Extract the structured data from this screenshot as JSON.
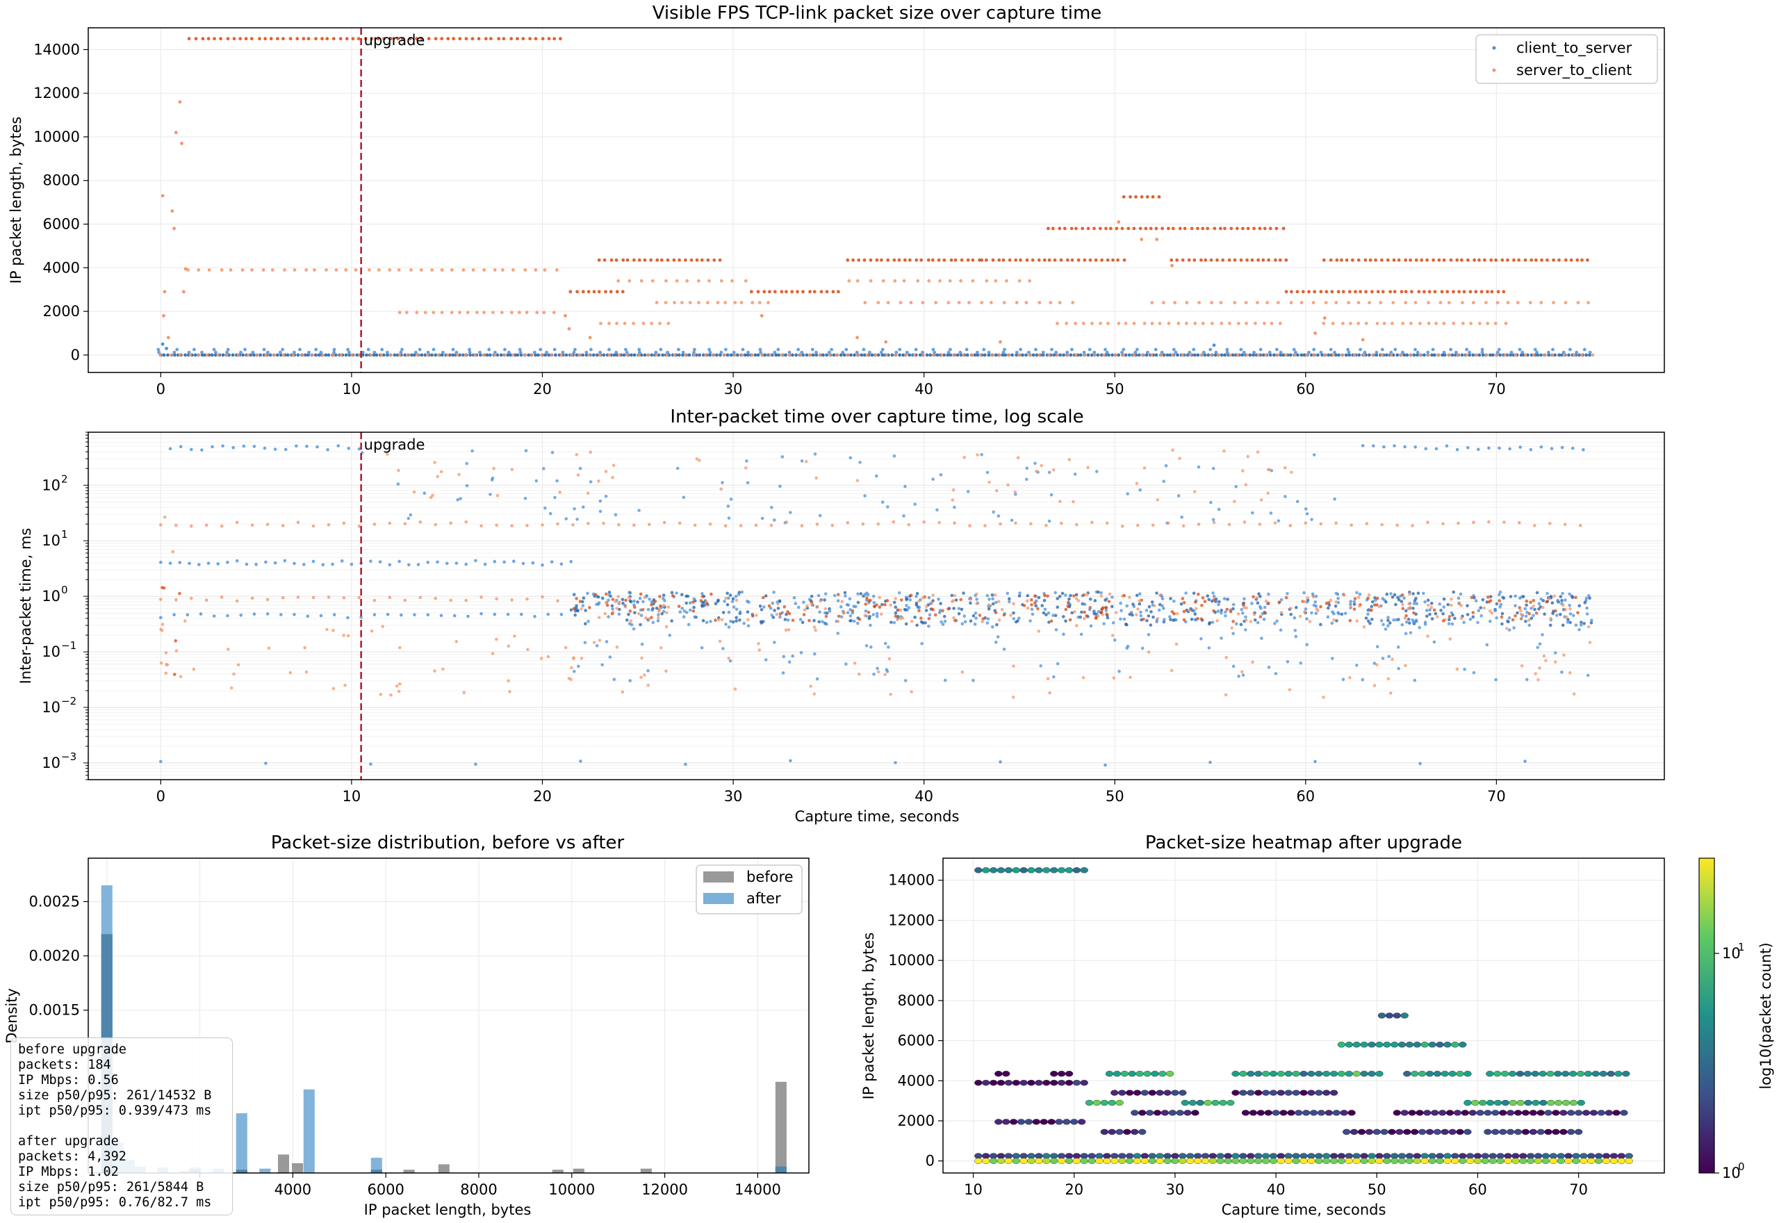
{
  "colors": {
    "client_to_server": "#4a90d9",
    "client_to_server_dense": "#1f5fa8",
    "server_to_client": "#f4956a",
    "server_to_client_dense": "#d9480f",
    "upgrade_line": "#b2182b",
    "before_bar": "#999999",
    "after_bar": "#7bb0d9",
    "overlap_bar": "#4f86ad"
  },
  "upgrade_label": "upgrade",
  "chart_data": [
    {
      "type": "scatter",
      "title": "Visible FPS TCP-link packet size over capture time",
      "xlabel": "",
      "ylabel": "IP packet length, bytes",
      "xlim": [
        -3.8,
        78.8
      ],
      "ylim": [
        -800,
        15000
      ],
      "xticks": [
        0,
        10,
        20,
        30,
        40,
        50,
        60,
        70
      ],
      "yticks": [
        0,
        2000,
        4000,
        6000,
        8000,
        10000,
        12000,
        14000
      ],
      "grid": true,
      "legend": {
        "position": "top-right",
        "entries": [
          "client_to_server",
          "server_to_client"
        ]
      },
      "upgrade_x": 10.5,
      "series": [
        {
          "name": "client_to_server",
          "levels": [
            {
              "y": 0,
              "x_range": [
                0,
                75
              ],
              "spacing": 0.18
            },
            {
              "y": 120,
              "x_range": [
                0,
                75
              ],
              "spacing": 0.7
            },
            {
              "y": 250,
              "x_range": [
                0,
                75
              ],
              "spacing": 0.9
            }
          ],
          "points": [
            [
              0.1,
              500
            ],
            [
              0.3,
              300
            ],
            [
              55.2,
              450
            ]
          ]
        },
        {
          "name": "server_to_client",
          "levels": [
            {
              "y": 14500,
              "x_range": [
                1.5,
                21.2
              ],
              "spacing": 0.33
            },
            {
              "y": 3900,
              "x_range": [
                1.5,
                21
              ],
              "spacing": 0.55
            },
            {
              "y": 4350,
              "x_range": [
                23,
                29.5
              ],
              "spacing": 0.3
            },
            {
              "y": 4350,
              "x_range": [
                36,
                43
              ],
              "spacing": 0.3
            },
            {
              "y": 4350,
              "x_range": [
                43,
                50.5
              ],
              "spacing": 0.3
            },
            {
              "y": 4350,
              "x_range": [
                53,
                59
              ],
              "spacing": 0.3
            },
            {
              "y": 4350,
              "x_range": [
                61,
                75
              ],
              "spacing": 0.3
            },
            {
              "y": 2900,
              "x_range": [
                21.5,
                24.5
              ],
              "spacing": 0.3
            },
            {
              "y": 2900,
              "x_range": [
                31,
                35.5
              ],
              "spacing": 0.3
            },
            {
              "y": 2900,
              "x_range": [
                59,
                70.5
              ],
              "spacing": 0.3
            },
            {
              "y": 5800,
              "x_range": [
                46.5,
                59
              ],
              "spacing": 0.3
            },
            {
              "y": 7250,
              "x_range": [
                50.5,
                52.5
              ],
              "spacing": 0.3
            },
            {
              "y": 1950,
              "x_range": [
                12.5,
                21
              ],
              "spacing": 0.45
            },
            {
              "y": 1450,
              "x_range": [
                23,
                27
              ],
              "spacing": 0.45
            },
            {
              "y": 1450,
              "x_range": [
                47,
                59
              ],
              "spacing": 0.45
            },
            {
              "y": 1450,
              "x_range": [
                61,
                70.5
              ],
              "spacing": 0.45
            },
            {
              "y": 2400,
              "x_range": [
                26,
                32
              ],
              "spacing": 0.45
            },
            {
              "y": 2400,
              "x_range": [
                37,
                48
              ],
              "spacing": 0.6
            },
            {
              "y": 2400,
              "x_range": [
                52,
                75
              ],
              "spacing": 0.6
            },
            {
              "y": 3400,
              "x_range": [
                24,
                31
              ],
              "spacing": 0.6
            },
            {
              "y": 3400,
              "x_range": [
                36,
                46
              ],
              "spacing": 0.6
            },
            {
              "y": 0,
              "x_range": [
                0,
                75
              ],
              "spacing": 0.5
            }
          ],
          "points": [
            [
              0.1,
              7300
            ],
            [
              0.2,
              2900
            ],
            [
              0.15,
              1800
            ],
            [
              0.8,
              10200
            ],
            [
              1.0,
              11600
            ],
            [
              1.1,
              9700
            ],
            [
              0.6,
              6600
            ],
            [
              0.7,
              5800
            ],
            [
              1.3,
              3950
            ],
            [
              1.2,
              2900
            ],
            [
              0.4,
              800
            ],
            [
              21.2,
              1800
            ],
            [
              21.4,
              1200
            ],
            [
              22.5,
              800
            ],
            [
              31.5,
              1800
            ],
            [
              36.5,
              800
            ],
            [
              38,
              600
            ],
            [
              50.2,
              6100
            ],
            [
              51.4,
              5300
            ],
            [
              52.2,
              5300
            ],
            [
              53,
              4100
            ],
            [
              61,
              1700
            ],
            [
              60.5,
              1000
            ],
            [
              63,
              700
            ],
            [
              44,
              600
            ]
          ]
        }
      ]
    },
    {
      "type": "scatter",
      "title": "Inter-packet time over capture time, log scale",
      "xlabel": "Capture time, seconds",
      "ylabel": "Inter-packet time, ms",
      "xlim": [
        -3.8,
        78.8
      ],
      "ylim": [
        0.0005,
        900
      ],
      "y_scale": "log",
      "xticks": [
        0,
        10,
        20,
        30,
        40,
        50,
        60,
        70
      ],
      "yticks": [
        "10^-3",
        "10^-2",
        "10^-1",
        "10^0",
        "10^1",
        "10^2"
      ],
      "grid": true,
      "upgrade_x": 10.5,
      "series": [
        {
          "name": "client_to_server",
          "levels": [
            {
              "y": 470,
              "x_range": [
                0.5,
                10.5
              ],
              "spacing": 0.55
            },
            {
              "y": 470,
              "x_range": [
                63,
                75
              ],
              "spacing": 0.55
            },
            {
              "y": 4,
              "x_range": [
                0,
                21.5
              ],
              "spacing": 0.5
            },
            {
              "y": 0.45,
              "x_range": [
                0,
                21.5
              ],
              "spacing": 0.7
            },
            {
              "y": 0.001,
              "x_range": [
                0,
                75
              ],
              "spacing": 5.5
            }
          ],
          "bands": [
            {
              "x_range": [
                21.5,
                75
              ],
              "y_range": [
                0.3,
                1.2
              ],
              "density": 14
            },
            {
              "x_range": [
                10.5,
                63
              ],
              "y_range": [
                20,
                450
              ],
              "density": 2.0
            },
            {
              "x_range": [
                21.5,
                75
              ],
              "y_range": [
                0.03,
                0.3
              ],
              "density": 2.0
            }
          ]
        },
        {
          "name": "server_to_client",
          "levels": [
            {
              "y": 20,
              "x_range": [
                0,
                75
              ],
              "spacing": 0.8
            },
            {
              "y": 0.9,
              "x_range": [
                0,
                21.5
              ],
              "spacing": 0.8
            }
          ],
          "bands": [
            {
              "x_range": [
                21.5,
                75
              ],
              "y_range": [
                0.35,
                1.1
              ],
              "density": 6
            },
            {
              "x_range": [
                10.5,
                62
              ],
              "y_range": [
                50,
                450
              ],
              "density": 1.2
            },
            {
              "x_range": [
                0,
                75
              ],
              "y_range": [
                0.015,
                0.3
              ],
              "density": 1.6
            },
            {
              "x_range": [
                0,
                1.5
              ],
              "y_range": [
                0.03,
                30
              ],
              "density": 10
            }
          ]
        }
      ]
    },
    {
      "type": "bar",
      "title": "Packet-size distribution, before vs after",
      "xlabel": "IP packet length, bytes",
      "ylabel": "Density",
      "xlim": [
        -400,
        15100
      ],
      "ylim": [
        0,
        0.0029
      ],
      "xticks": [
        4000,
        6000,
        8000,
        10000,
        12000,
        14000
      ],
      "xticks_hidden": [
        0,
        2000
      ],
      "yticks": [
        "0.0015",
        "0.0020",
        "0.0025"
      ],
      "grid": true,
      "legend": {
        "position": "top-right",
        "entries": [
          "before",
          "after"
        ]
      },
      "bin_width": 240,
      "series": [
        {
          "name": "before",
          "bins": [
            [
              0,
              0.0022
            ],
            [
              1900,
              3e-05
            ],
            [
              2900,
              3e-05
            ],
            [
              3800,
              0.00017
            ],
            [
              4100,
              9e-05
            ],
            [
              5800,
              3e-05
            ],
            [
              6500,
              3e-05
            ],
            [
              7250,
              8e-05
            ],
            [
              9700,
              3e-05
            ],
            [
              10150,
              4e-05
            ],
            [
              11600,
              4e-05
            ],
            [
              14500,
              0.00084
            ]
          ]
        },
        {
          "name": "after",
          "bins": [
            [
              0,
              0.00265
            ],
            [
              240,
              0.00028
            ],
            [
              480,
              0.00012
            ],
            [
              720,
              6e-05
            ],
            [
              1200,
              5e-05
            ],
            [
              1700,
              2e-05
            ],
            [
              1900,
              5e-05
            ],
            [
              2400,
              4e-05
            ],
            [
              2900,
              0.00055
            ],
            [
              3400,
              4e-05
            ],
            [
              4350,
              0.00077
            ],
            [
              5800,
              0.00014
            ],
            [
              14500,
              6e-05
            ]
          ]
        }
      ]
    },
    {
      "type": "heatmap",
      "title": "Packet-size heatmap after upgrade",
      "xlabel": "Capture time, seconds",
      "ylabel": "IP packet length, bytes",
      "colorbar_label": "log10(packet count)",
      "colorbar_ticks": [
        "10^0",
        "10^1"
      ],
      "xlim": [
        7,
        78.5
      ],
      "ylim": [
        -600,
        15100
      ],
      "xticks": [
        10,
        20,
        30,
        40,
        50,
        60,
        70
      ],
      "yticks": [
        0,
        2000,
        4000,
        6000,
        8000,
        10000,
        12000,
        14000
      ],
      "grid": true,
      "rows": [
        {
          "y": 14500,
          "x_range": [
            10.5,
            21.2
          ],
          "level": 0.45
        },
        {
          "y": 7250,
          "x_range": [
            50.5,
            52.8
          ],
          "level": 0.35
        },
        {
          "y": 5800,
          "x_range": [
            46.5,
            59.2
          ],
          "level": 0.5
        },
        {
          "y": 4350,
          "x_range": [
            23.5,
            29.5
          ],
          "level": 0.6
        },
        {
          "y": 4350,
          "x_range": [
            36,
            50.5
          ],
          "level": 0.55
        },
        {
          "y": 4350,
          "x_range": [
            53,
            59
          ],
          "level": 0.55
        },
        {
          "y": 4350,
          "x_range": [
            61.2,
            75
          ],
          "level": 0.55
        },
        {
          "y": 4350,
          "x_range": [
            12.5,
            13.5
          ],
          "level": 0.05
        },
        {
          "y": 4350,
          "x_range": [
            18,
            19.5
          ],
          "level": 0.05
        },
        {
          "y": 3900,
          "x_range": [
            10.5,
            21
          ],
          "level": 0.05
        },
        {
          "y": 2900,
          "x_range": [
            21.5,
            24.5
          ],
          "level": 0.7
        },
        {
          "y": 2900,
          "x_range": [
            31,
            35.5
          ],
          "level": 0.6
        },
        {
          "y": 2900,
          "x_range": [
            59,
            70.5
          ],
          "level": 0.6
        },
        {
          "y": 3400,
          "x_range": [
            24,
            31
          ],
          "level": 0.1
        },
        {
          "y": 3400,
          "x_range": [
            36,
            46
          ],
          "level": 0.1
        },
        {
          "y": 2400,
          "x_range": [
            26,
            32
          ],
          "level": 0.1
        },
        {
          "y": 2400,
          "x_range": [
            37,
            48
          ],
          "level": 0.1
        },
        {
          "y": 2400,
          "x_range": [
            52,
            75
          ],
          "level": 0.08
        },
        {
          "y": 1950,
          "x_range": [
            12.5,
            21
          ],
          "level": 0.12
        },
        {
          "y": 1450,
          "x_range": [
            23,
            27
          ],
          "level": 0.1
        },
        {
          "y": 1450,
          "x_range": [
            47,
            59
          ],
          "level": 0.1
        },
        {
          "y": 1450,
          "x_range": [
            61,
            70.5
          ],
          "level": 0.1
        },
        {
          "y": 250,
          "x_range": [
            10.5,
            75
          ],
          "level": 0.25
        },
        {
          "y": 0,
          "x_range": [
            10.5,
            75
          ],
          "level": 0.9
        }
      ]
    }
  ],
  "stats": {
    "before": [
      "before upgrade",
      "packets: 184",
      "IP Mbps: 0.56",
      "size p50/p95: 261/14532 B",
      "ipt p50/p95: 0.939/473 ms"
    ],
    "after": [
      "after upgrade",
      "packets: 4,392",
      "IP Mbps: 1.02",
      "size p50/p95: 261/5844 B",
      "ipt p50/p95: 0.76/82.7 ms"
    ]
  }
}
